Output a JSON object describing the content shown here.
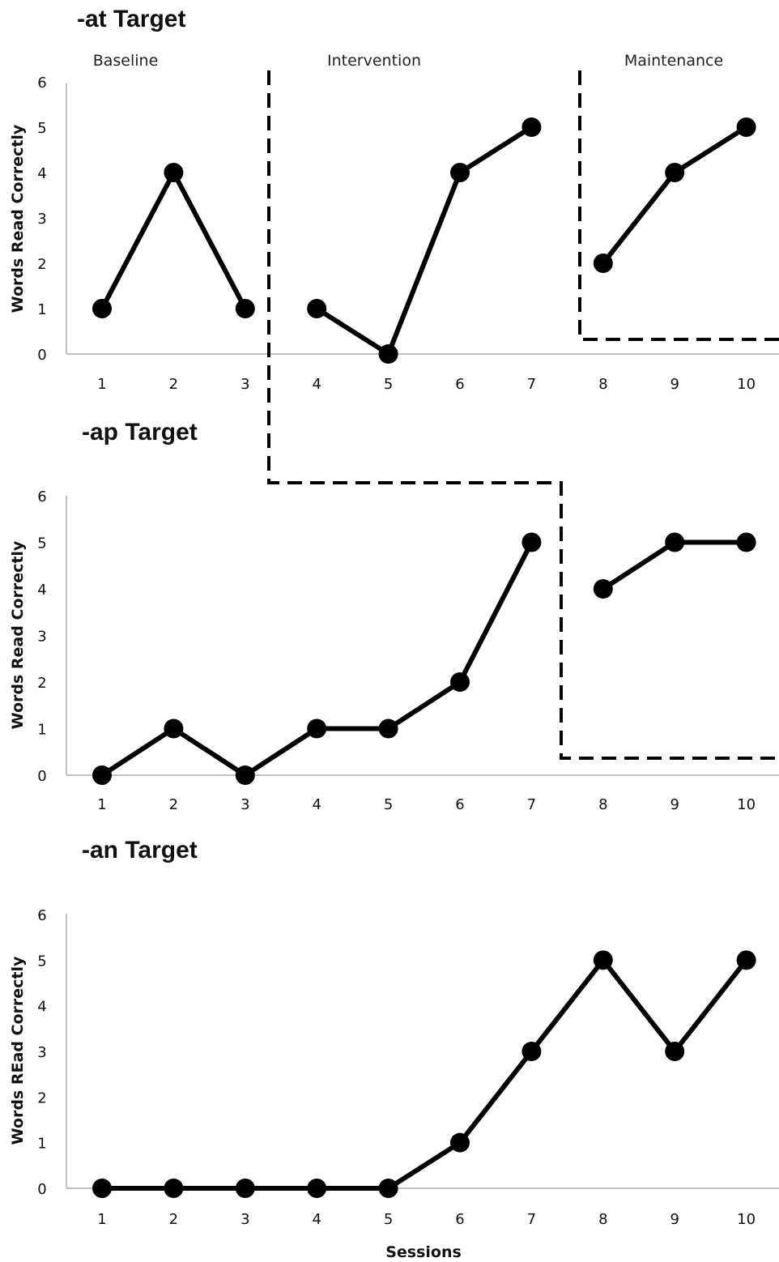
{
  "chart_data": [
    {
      "type": "line",
      "title": "-at Target",
      "ylabel": "Words Read Correctly",
      "xlabel": "",
      "ylim": [
        0,
        6
      ],
      "yticks": [
        "0",
        "1",
        "2",
        "3",
        "4",
        "5",
        "6"
      ],
      "categories": [
        "1",
        "2",
        "3",
        "4",
        "5",
        "6",
        "7",
        "8",
        "9",
        "10"
      ],
      "phase_labels": [
        "Baseline",
        "Intervention",
        "Maintenance"
      ],
      "segments": [
        {
          "x": [
            1,
            2,
            3
          ],
          "y": [
            1,
            4,
            1
          ]
        },
        {
          "x": [
            4,
            5,
            6,
            7
          ],
          "y": [
            1,
            0,
            4,
            5
          ]
        },
        {
          "x": [
            8,
            9,
            10
          ],
          "y": [
            2,
            4,
            5
          ]
        }
      ]
    },
    {
      "type": "line",
      "title": "-ap Target",
      "ylabel": "Words Read Correctly",
      "xlabel": "",
      "ylim": [
        0,
        6
      ],
      "yticks": [
        "0",
        "1",
        "2",
        "3",
        "4",
        "5",
        "6"
      ],
      "categories": [
        "1",
        "2",
        "3",
        "4",
        "5",
        "6",
        "7",
        "8",
        "9",
        "10"
      ],
      "segments": [
        {
          "x": [
            1,
            2,
            3,
            4,
            5,
            6,
            7
          ],
          "y": [
            0,
            1,
            0,
            1,
            1,
            2,
            5
          ]
        },
        {
          "x": [
            8,
            9,
            10
          ],
          "y": [
            4,
            5,
            5
          ]
        }
      ]
    },
    {
      "type": "line",
      "title": "-an Target",
      "ylabel": "Words REad Correctly",
      "xlabel": "Sessions",
      "ylim": [
        0,
        6
      ],
      "yticks": [
        "0",
        "1",
        "2",
        "3",
        "4",
        "5",
        "6"
      ],
      "categories": [
        "1",
        "2",
        "3",
        "4",
        "5",
        "6",
        "7",
        "8",
        "9",
        "10"
      ],
      "segments": [
        {
          "x": [
            1,
            2,
            3,
            4,
            5,
            6,
            7,
            8,
            9,
            10
          ],
          "y": [
            0,
            0,
            0,
            0,
            0,
            1,
            3,
            5,
            3,
            5
          ]
        }
      ]
    }
  ]
}
